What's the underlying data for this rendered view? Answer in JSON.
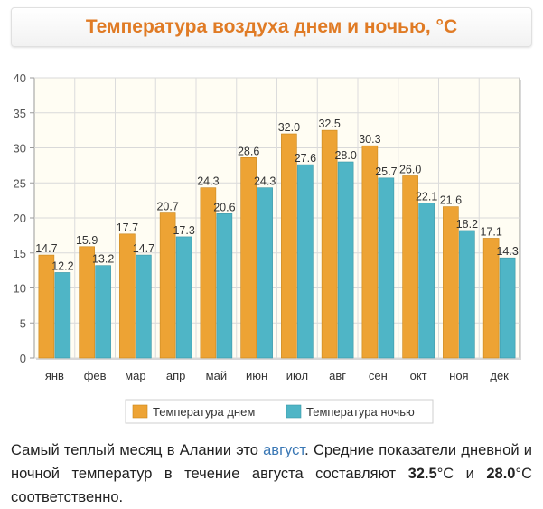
{
  "header": {
    "title": "Температура воздуха днем и ночью, °C"
  },
  "colors": {
    "day": "#eda334",
    "night": "#4fb5c6",
    "title": "#e07b25",
    "link": "#3b78b5"
  },
  "chart_data": {
    "type": "bar",
    "title": "Температура воздуха днем и ночью, °C",
    "categories": [
      "янв",
      "фев",
      "мар",
      "апр",
      "май",
      "июн",
      "июл",
      "авг",
      "сен",
      "окт",
      "ноя",
      "дек"
    ],
    "series": [
      {
        "name": "Температура днем",
        "values": [
          14.7,
          15.9,
          17.7,
          20.7,
          24.3,
          28.6,
          32.0,
          32.5,
          30.3,
          26.0,
          21.6,
          17.1
        ]
      },
      {
        "name": "Температура ночью",
        "values": [
          12.2,
          13.2,
          14.7,
          17.3,
          20.6,
          24.3,
          27.6,
          28.0,
          25.7,
          22.1,
          18.2,
          14.3
        ]
      }
    ],
    "data_labels": [
      [
        "14.7",
        "15.9",
        "17.7",
        "20.7",
        "24.3",
        "28.6",
        "32.0",
        "32.5",
        "30.3",
        "26.0",
        "21.6",
        "17.1"
      ],
      [
        "12.2",
        "13.2",
        "14.7",
        "17.3",
        "20.6",
        "24.3",
        "27.6",
        "28.0",
        "25.7",
        "22.1",
        "18.2",
        "14.3"
      ]
    ],
    "ylim": [
      0,
      40
    ],
    "yticks": [
      0,
      5,
      10,
      15,
      20,
      25,
      30,
      35,
      40
    ],
    "xlabel": "",
    "ylabel": "",
    "grid": true,
    "legend": "bottom-center"
  },
  "caption": {
    "part1": "Самый теплый месяц в Алании это ",
    "link": "август",
    "part2": ". Средние показатели дневной и ночной температур в течение августа составляют ",
    "day_value": "32.5",
    "unit1": "°C и ",
    "night_value": "28.0",
    "unit2": "°C соответственно."
  }
}
